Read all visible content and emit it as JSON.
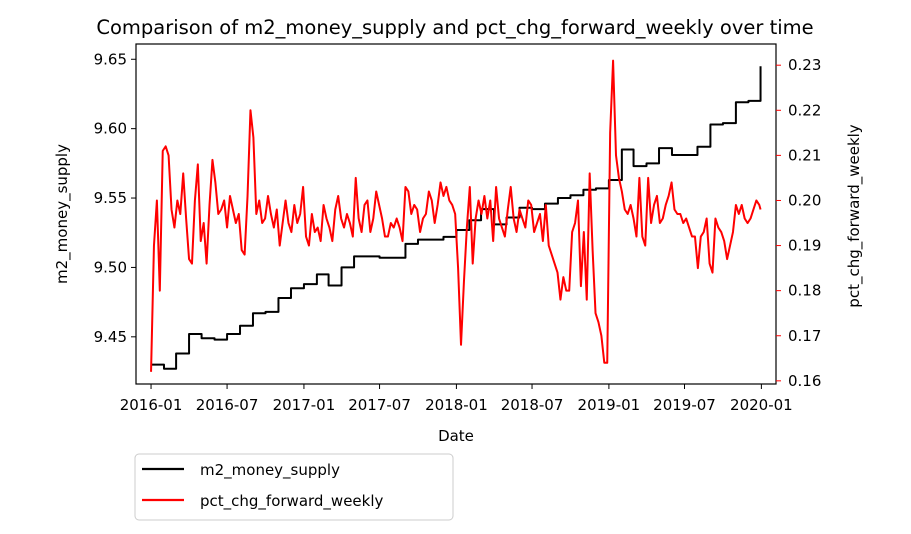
{
  "chart_data": {
    "type": "line",
    "title": "Comparison of m2_money_supply and pct_chg_forward_weekly over time",
    "xlabel": "Date",
    "x_ticks": [
      "2016-01",
      "2016-07",
      "2017-01",
      "2017-07",
      "2018-01",
      "2018-07",
      "2019-01",
      "2019-07",
      "2020-01"
    ],
    "xlim": [
      "2015-11-26",
      "2020-02-05"
    ],
    "y_left": {
      "label": "m2_money_supply",
      "color": "#000000",
      "ticks": [
        "9.45",
        "9.50",
        "9.55",
        "9.60",
        "9.65"
      ],
      "ylim": [
        9.416,
        9.661
      ]
    },
    "y_right": {
      "label": "pct_chg_forward_weekly",
      "color": "#ff0000",
      "ticks": [
        "0.16",
        "0.17",
        "0.18",
        "0.19",
        "0.20",
        "0.21",
        "0.22",
        "0.23"
      ],
      "ylim": [
        0.1593,
        0.2347
      ]
    },
    "legend": {
      "placement": "below-left"
    },
    "series": [
      {
        "name": "m2_money_supply",
        "axis": "left",
        "color": "#000000",
        "x": [
          "2016-01-01",
          "2016-02-01",
          "2016-03-01",
          "2016-04-01",
          "2016-05-01",
          "2016-06-01",
          "2016-07-01",
          "2016-08-01",
          "2016-09-01",
          "2016-10-01",
          "2016-11-01",
          "2016-12-01",
          "2017-01-01",
          "2017-02-01",
          "2017-03-01",
          "2017-04-01",
          "2017-05-01",
          "2017-06-01",
          "2017-07-01",
          "2017-08-01",
          "2017-09-01",
          "2017-10-01",
          "2017-11-01",
          "2017-12-01",
          "2018-01-01",
          "2018-02-01",
          "2018-03-01",
          "2018-04-01",
          "2018-05-01",
          "2018-06-01",
          "2018-07-01",
          "2018-08-01",
          "2018-09-01",
          "2018-10-01",
          "2018-11-01",
          "2018-12-01",
          "2019-01-01",
          "2019-02-01",
          "2019-03-01",
          "2019-04-01",
          "2019-05-01",
          "2019-06-01",
          "2019-07-01",
          "2019-08-01",
          "2019-09-01",
          "2019-10-01",
          "2019-11-01",
          "2019-12-01",
          "2019-12-30"
        ],
        "values": [
          9.43,
          9.427,
          9.438,
          9.452,
          9.449,
          9.448,
          9.452,
          9.458,
          9.467,
          9.468,
          9.478,
          9.485,
          9.488,
          9.495,
          9.487,
          9.5,
          9.508,
          9.508,
          9.507,
          9.507,
          9.517,
          9.52,
          9.52,
          9.522,
          9.527,
          9.534,
          9.542,
          9.531,
          9.536,
          9.543,
          9.542,
          9.546,
          9.55,
          9.552,
          9.556,
          9.557,
          9.563,
          9.585,
          9.573,
          9.575,
          9.586,
          9.581,
          9.581,
          9.587,
          9.603,
          9.604,
          9.619,
          9.62,
          9.645
        ]
      },
      {
        "name": "pct_chg_forward_weekly",
        "axis": "right",
        "color": "#ff0000",
        "x": [
          "2016-01-01",
          "2016-01-08",
          "2016-01-15",
          "2016-01-22",
          "2016-01-29",
          "2016-02-05",
          "2016-02-12",
          "2016-02-19",
          "2016-02-26",
          "2016-03-04",
          "2016-03-11",
          "2016-03-18",
          "2016-03-25",
          "2016-04-01",
          "2016-04-08",
          "2016-04-15",
          "2016-04-22",
          "2016-04-29",
          "2016-05-06",
          "2016-05-13",
          "2016-05-20",
          "2016-05-27",
          "2016-06-03",
          "2016-06-10",
          "2016-06-17",
          "2016-06-24",
          "2016-07-01",
          "2016-07-08",
          "2016-07-15",
          "2016-07-22",
          "2016-07-29",
          "2016-08-05",
          "2016-08-12",
          "2016-08-19",
          "2016-08-26",
          "2016-09-02",
          "2016-09-09",
          "2016-09-16",
          "2016-09-23",
          "2016-09-30",
          "2016-10-07",
          "2016-10-14",
          "2016-10-21",
          "2016-10-28",
          "2016-11-04",
          "2016-11-11",
          "2016-11-18",
          "2016-11-25",
          "2016-12-02",
          "2016-12-09",
          "2016-12-16",
          "2016-12-23",
          "2016-12-30",
          "2017-01-06",
          "2017-01-13",
          "2017-01-20",
          "2017-01-27",
          "2017-02-03",
          "2017-02-10",
          "2017-02-17",
          "2017-02-24",
          "2017-03-03",
          "2017-03-10",
          "2017-03-17",
          "2017-03-24",
          "2017-03-31",
          "2017-04-07",
          "2017-04-14",
          "2017-04-21",
          "2017-04-28",
          "2017-05-05",
          "2017-05-12",
          "2017-05-19",
          "2017-05-26",
          "2017-06-02",
          "2017-06-09",
          "2017-06-16",
          "2017-06-23",
          "2017-06-30",
          "2017-07-07",
          "2017-07-14",
          "2017-07-21",
          "2017-07-28",
          "2017-08-04",
          "2017-08-11",
          "2017-08-18",
          "2017-08-25",
          "2017-09-01",
          "2017-09-08",
          "2017-09-15",
          "2017-09-22",
          "2017-09-29",
          "2017-10-06",
          "2017-10-13",
          "2017-10-20",
          "2017-10-27",
          "2017-11-03",
          "2017-11-10",
          "2017-11-17",
          "2017-11-24",
          "2017-12-01",
          "2017-12-08",
          "2017-12-15",
          "2017-12-22",
          "2017-12-29",
          "2018-01-05",
          "2018-01-12",
          "2018-01-19",
          "2018-01-26",
          "2018-02-02",
          "2018-02-09",
          "2018-02-16",
          "2018-02-23",
          "2018-03-02",
          "2018-03-09",
          "2018-03-16",
          "2018-03-23",
          "2018-03-30",
          "2018-04-06",
          "2018-04-13",
          "2018-04-20",
          "2018-04-27",
          "2018-05-04",
          "2018-05-11",
          "2018-05-18",
          "2018-05-25",
          "2018-06-01",
          "2018-06-08",
          "2018-06-15",
          "2018-06-22",
          "2018-06-29",
          "2018-07-06",
          "2018-07-13",
          "2018-07-20",
          "2018-07-27",
          "2018-08-03",
          "2018-08-10",
          "2018-08-17",
          "2018-08-24",
          "2018-08-31",
          "2018-09-07",
          "2018-09-14",
          "2018-09-21",
          "2018-09-28",
          "2018-10-05",
          "2018-10-12",
          "2018-10-19",
          "2018-10-26",
          "2018-11-02",
          "2018-11-09",
          "2018-11-16",
          "2018-11-23",
          "2018-11-30",
          "2018-12-07",
          "2018-12-14",
          "2018-12-21",
          "2018-12-28",
          "2019-01-04",
          "2019-01-11",
          "2019-01-18",
          "2019-01-25",
          "2019-02-01",
          "2019-02-08",
          "2019-02-15",
          "2019-02-22",
          "2019-03-01",
          "2019-03-08",
          "2019-03-15",
          "2019-03-22",
          "2019-03-29",
          "2019-04-05",
          "2019-04-12",
          "2019-04-19",
          "2019-04-26",
          "2019-05-03",
          "2019-05-10",
          "2019-05-17",
          "2019-05-24",
          "2019-05-31",
          "2019-06-07",
          "2019-06-14",
          "2019-06-21",
          "2019-06-28",
          "2019-07-05",
          "2019-07-12",
          "2019-07-19",
          "2019-07-26",
          "2019-08-02",
          "2019-08-09",
          "2019-08-16",
          "2019-08-23",
          "2019-08-30",
          "2019-09-06",
          "2019-09-13",
          "2019-09-20",
          "2019-09-27",
          "2019-10-04",
          "2019-10-11",
          "2019-10-18",
          "2019-10-25",
          "2019-11-01",
          "2019-11-08",
          "2019-11-15",
          "2019-11-22",
          "2019-11-29",
          "2019-12-06",
          "2019-12-13",
          "2019-12-20",
          "2019-12-27",
          "2019-12-30"
        ],
        "values": [
          0.162,
          0.19,
          0.2,
          0.18,
          0.211,
          0.212,
          0.21,
          0.198,
          0.194,
          0.2,
          0.197,
          0.206,
          0.196,
          0.187,
          0.186,
          0.2,
          0.208,
          0.191,
          0.195,
          0.186,
          0.199,
          0.209,
          0.204,
          0.197,
          0.198,
          0.2,
          0.194,
          0.201,
          0.198,
          0.195,
          0.197,
          0.189,
          0.188,
          0.201,
          0.22,
          0.214,
          0.197,
          0.2,
          0.195,
          0.196,
          0.201,
          0.197,
          0.194,
          0.198,
          0.19,
          0.195,
          0.2,
          0.195,
          0.193,
          0.199,
          0.195,
          0.197,
          0.203,
          0.192,
          0.19,
          0.197,
          0.193,
          0.194,
          0.191,
          0.199,
          0.196,
          0.194,
          0.191,
          0.198,
          0.201,
          0.196,
          0.194,
          0.197,
          0.195,
          0.192,
          0.205,
          0.196,
          0.193,
          0.199,
          0.2,
          0.193,
          0.196,
          0.202,
          0.199,
          0.196,
          0.192,
          0.192,
          0.195,
          0.194,
          0.196,
          0.194,
          0.191,
          0.203,
          0.202,
          0.197,
          0.199,
          0.198,
          0.193,
          0.196,
          0.197,
          0.202,
          0.2,
          0.195,
          0.199,
          0.204,
          0.201,
          0.203,
          0.2,
          0.199,
          0.197,
          0.185,
          0.168,
          0.182,
          0.194,
          0.203,
          0.186,
          0.196,
          0.2,
          0.197,
          0.201,
          0.196,
          0.2,
          0.191,
          0.203,
          0.196,
          0.194,
          0.192,
          0.198,
          0.203,
          0.196,
          0.193,
          0.198,
          0.196,
          0.194,
          0.2,
          0.199,
          0.193,
          0.195,
          0.197,
          0.191,
          0.199,
          0.19,
          0.188,
          0.186,
          0.184,
          0.178,
          0.183,
          0.18,
          0.18,
          0.193,
          0.195,
          0.2,
          0.181,
          0.193,
          0.178,
          0.206,
          0.189,
          0.175,
          0.173,
          0.17,
          0.164,
          0.164,
          0.215,
          0.231,
          0.21,
          0.205,
          0.202,
          0.198,
          0.197,
          0.199,
          0.196,
          0.192,
          0.205,
          0.192,
          0.19,
          0.205,
          0.195,
          0.199,
          0.201,
          0.195,
          0.196,
          0.199,
          0.201,
          0.204,
          0.198,
          0.197,
          0.197,
          0.195,
          0.196,
          0.194,
          0.192,
          0.192,
          0.185,
          0.192,
          0.193,
          0.196,
          0.186,
          0.184,
          0.196,
          0.194,
          0.193,
          0.191,
          0.187,
          0.19,
          0.193,
          0.199,
          0.197,
          0.199,
          0.196,
          0.195,
          0.196,
          0.198,
          0.2,
          0.199,
          0.198
        ]
      }
    ]
  }
}
